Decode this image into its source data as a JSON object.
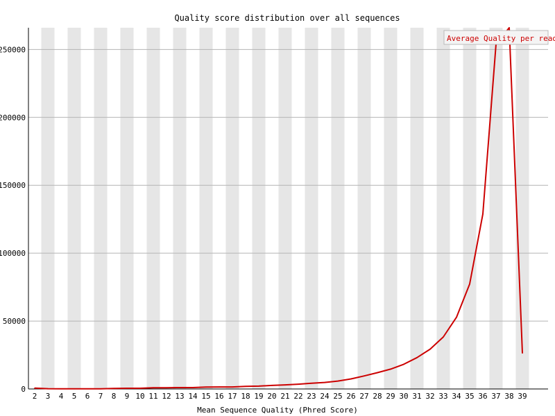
{
  "chart_data": {
    "type": "line",
    "title": "Quality score distribution over all sequences",
    "xlabel": "Mean Sequence Quality (Phred Score)",
    "ylabel": "",
    "x": [
      2,
      3,
      4,
      5,
      6,
      7,
      8,
      9,
      10,
      11,
      12,
      13,
      14,
      15,
      16,
      17,
      18,
      19,
      20,
      21,
      22,
      23,
      24,
      25,
      26,
      27,
      28,
      29,
      30,
      31,
      32,
      33,
      34,
      35,
      36,
      37,
      38,
      39
    ],
    "ylim": [
      0,
      266000
    ],
    "yticks": [
      0,
      50000,
      100000,
      150000,
      200000,
      250000
    ],
    "series": [
      {
        "name": "Average Quality per read",
        "color": "#cc0000",
        "values": [
          600,
          200,
          100,
          100,
          100,
          100,
          400,
          500,
          500,
          900,
          900,
          1000,
          1000,
          1400,
          1500,
          1500,
          1900,
          2100,
          2600,
          3000,
          3500,
          4200,
          4800,
          5800,
          7400,
          9600,
          12000,
          14600,
          18200,
          23100,
          29300,
          38300,
          52800,
          77300,
          128800,
          254000,
          266000,
          26400
        ]
      }
    ],
    "grid": true,
    "legend_position": "top-right",
    "colors": {
      "band": "#e6e6e6",
      "grid": "#b4b4b4",
      "line": "#cc0000",
      "axis": "#000000"
    }
  }
}
